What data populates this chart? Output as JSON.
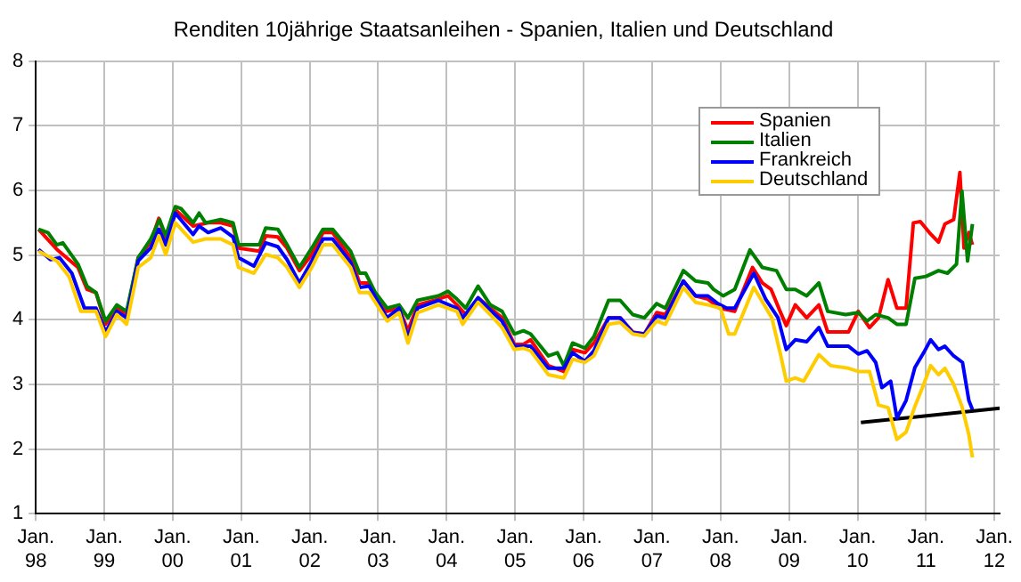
{
  "chart_data": {
    "type": "line",
    "title": "Renditen 10jährige Staatsanleihen - Spanien, Italien und Deutschland",
    "xlim": [
      "1998-01-01",
      "2012-01-29"
    ],
    "xticks": [
      {
        "value": "1998-01-01",
        "label": "Jan. 98"
      },
      {
        "value": "1999-01-01",
        "label": "Jan. 99"
      },
      {
        "value": "2000-01-01",
        "label": "Jan. 00"
      },
      {
        "value": "2001-01-01",
        "label": "Jan. 01"
      },
      {
        "value": "2002-01-01",
        "label": "Jan. 02"
      },
      {
        "value": "2003-01-01",
        "label": "Jan. 03"
      },
      {
        "value": "2004-01-01",
        "label": "Jan. 04"
      },
      {
        "value": "2005-01-01",
        "label": "Jan. 05"
      },
      {
        "value": "2006-01-01",
        "label": "Jan. 06"
      },
      {
        "value": "2007-01-01",
        "label": "Jan. 07"
      },
      {
        "value": "2008-01-01",
        "label": "Jan. 08"
      },
      {
        "value": "2009-01-01",
        "label": "Jan. 09"
      },
      {
        "value": "2010-01-01",
        "label": "Jan. 10"
      },
      {
        "value": "2011-01-01",
        "label": "Jan. 11"
      },
      {
        "value": "2012-01-01",
        "label": "Jan. 12"
      }
    ],
    "ylim": [
      1,
      8
    ],
    "yticks": [
      1,
      2,
      3,
      4,
      5,
      6,
      7,
      8
    ],
    "grid": true,
    "legend": "top right",
    "marker": "none",
    "line_style": "solid",
    "series": [
      {
        "name": "Deutschland",
        "color": "#ffcc00",
        "x": [
          "1998-01-15",
          "1998-04-23",
          "1998-06-27",
          "1998-08-29",
          "1998-11-18",
          "1999-01-08",
          "1999-03-09",
          "1999-04-30",
          "1999-07-01",
          "1999-09-06",
          "1999-10-19",
          "1999-11-25",
          "2000-01-15",
          "2000-04-19",
          "2000-06-24",
          "2000-09-13",
          "2000-11-18",
          "2000-12-17",
          "2001-03-09",
          "2001-05-11",
          "2001-07-15",
          "2001-09-02",
          "2001-11-07",
          "2002-01-12",
          "2002-03-13",
          "2002-05-03",
          "2002-08-07",
          "2002-09-24",
          "2002-11-14",
          "2003-02-18",
          "2003-04-23",
          "2003-06-09",
          "2003-07-30",
          "2003-11-18",
          "2004-02-25",
          "2004-03-27",
          "2004-06-17",
          "2004-08-21",
          "2004-10-23",
          "2004-12-27",
          "2005-02-14",
          "2005-03-24",
          "2005-06-27",
          "2005-09-17",
          "2005-11-03",
          "2006-01-08",
          "2006-02-25",
          "2006-05-14",
          "2006-07-15",
          "2006-09-20",
          "2006-11-21",
          "2007-01-26",
          "2007-03-13",
          "2007-06-17",
          "2007-08-21",
          "2007-10-26",
          "2008-01-01",
          "2008-02-14",
          "2008-03-17",
          "2008-06-27",
          "2008-10-01",
          "2008-11-18",
          "2008-12-17",
          "2009-02-03",
          "2009-03-20",
          "2009-06-09",
          "2009-08-11",
          "2009-11-14",
          "2010-01-05",
          "2010-03-06",
          "2010-04-23",
          "2010-06-13",
          "2010-07-30",
          "2010-09-17",
          "2010-11-03",
          "2010-12-20",
          "2011-01-26",
          "2011-03-09",
          "2011-04-12",
          "2011-05-29",
          "2011-07-12",
          "2011-08-18",
          "2011-09-06"
        ],
        "values": [
          5.06,
          4.91,
          4.67,
          4.13,
          4.13,
          3.74,
          4.08,
          3.93,
          4.81,
          4.96,
          5.3,
          5.01,
          5.5,
          5.2,
          5.25,
          5.25,
          5.16,
          4.81,
          4.72,
          5.01,
          4.96,
          4.81,
          4.5,
          4.81,
          5.16,
          5.16,
          4.81,
          4.42,
          4.42,
          3.98,
          4.11,
          3.64,
          4.11,
          4.23,
          4.13,
          3.93,
          4.27,
          4.08,
          3.88,
          3.54,
          3.56,
          3.52,
          3.15,
          3.1,
          3.39,
          3.34,
          3.44,
          3.93,
          3.96,
          3.78,
          3.75,
          3.98,
          3.93,
          4.5,
          4.27,
          4.23,
          4.18,
          3.78,
          3.78,
          4.5,
          4.03,
          3.44,
          3.05,
          3.1,
          3.05,
          3.46,
          3.29,
          3.25,
          3.2,
          3.2,
          2.68,
          2.64,
          2.15,
          2.26,
          2.66,
          3.0,
          3.29,
          3.15,
          3.25,
          3.0,
          2.66,
          2.22,
          1.87
        ]
      },
      {
        "name": "Frankreich",
        "color": "#0000ff",
        "x": [
          "1998-01-15",
          "1998-03-20",
          "1998-05-07",
          "1998-07-12",
          "1998-09-17",
          "1998-11-18",
          "1999-01-08",
          "1999-03-09",
          "1999-04-30",
          "1999-07-01",
          "1999-09-06",
          "1999-10-19",
          "1999-11-25",
          "2000-01-15",
          "2000-04-19",
          "2000-05-21",
          "2000-07-08",
          "2000-09-13",
          "2000-11-18",
          "2000-12-17",
          "2001-03-09",
          "2001-05-11",
          "2001-07-15",
          "2001-09-02",
          "2001-11-07",
          "2002-01-12",
          "2002-03-13",
          "2002-05-03",
          "2002-08-07",
          "2002-09-24",
          "2002-11-14",
          "2003-02-18",
          "2003-04-23",
          "2003-06-09",
          "2003-07-30",
          "2003-11-18",
          "2004-02-25",
          "2004-03-27",
          "2004-06-17",
          "2004-08-21",
          "2004-10-23",
          "2004-12-27",
          "2005-02-14",
          "2005-03-24",
          "2005-06-27",
          "2005-09-17",
          "2005-11-03",
          "2006-01-08",
          "2006-02-25",
          "2006-05-14",
          "2006-07-15",
          "2006-09-20",
          "2006-11-21",
          "2007-01-26",
          "2007-03-13",
          "2007-06-17",
          "2007-08-21",
          "2007-10-26",
          "2007-12-17",
          "2008-02-03",
          "2008-03-17",
          "2008-06-27",
          "2008-08-29",
          "2008-11-03",
          "2008-12-17",
          "2009-02-03",
          "2009-04-05",
          "2009-06-09",
          "2009-07-26",
          "2009-11-14",
          "2010-01-05",
          "2010-02-21",
          "2010-04-08",
          "2010-05-11",
          "2010-06-27",
          "2010-07-30",
          "2010-09-17",
          "2010-11-03",
          "2010-12-20",
          "2011-01-26",
          "2011-03-09",
          "2011-04-12",
          "2011-05-29",
          "2011-07-15",
          "2011-08-18",
          "2011-09-06"
        ],
        "values": [
          5.09,
          4.93,
          4.96,
          4.72,
          4.18,
          4.18,
          3.81,
          4.13,
          4.03,
          4.91,
          5.11,
          5.4,
          5.16,
          5.65,
          5.32,
          5.45,
          5.35,
          5.42,
          5.28,
          4.96,
          4.83,
          5.19,
          5.13,
          4.93,
          4.57,
          4.91,
          5.25,
          5.25,
          4.89,
          4.5,
          4.52,
          4.03,
          4.18,
          3.72,
          4.18,
          4.3,
          4.18,
          4.03,
          4.34,
          4.15,
          3.98,
          3.59,
          3.59,
          3.59,
          3.25,
          3.25,
          3.49,
          3.36,
          3.52,
          4.03,
          4.03,
          3.8,
          3.78,
          4.06,
          4.03,
          4.6,
          4.37,
          4.37,
          4.25,
          4.18,
          4.18,
          4.72,
          4.32,
          4.03,
          3.54,
          3.69,
          3.66,
          3.88,
          3.59,
          3.59,
          3.47,
          3.52,
          3.34,
          2.95,
          3.05,
          2.48,
          2.75,
          3.26,
          3.49,
          3.69,
          3.54,
          3.59,
          3.44,
          3.34,
          2.75,
          2.61
        ]
      },
      {
        "name": "Italien",
        "color": "#008000",
        "x": [
          "1998-01-15",
          "1998-03-06",
          "1998-04-23",
          "1998-05-25",
          "1998-08-14",
          "1998-10-01",
          "1998-11-18",
          "1999-01-08",
          "1999-03-09",
          "1999-04-30",
          "1999-07-01",
          "1999-09-06",
          "1999-10-23",
          "1999-11-25",
          "2000-01-15",
          "2000-02-14",
          "2000-04-19",
          "2000-05-21",
          "2000-06-24",
          "2000-09-13",
          "2000-11-18",
          "2000-12-17",
          "2001-02-07",
          "2001-04-08",
          "2001-05-11",
          "2001-07-15",
          "2001-09-02",
          "2001-11-07",
          "2002-01-12",
          "2002-03-13",
          "2002-05-03",
          "2002-08-07",
          "2002-09-24",
          "2002-10-26",
          "2002-12-17",
          "2003-02-18",
          "2003-04-23",
          "2003-06-09",
          "2003-07-30",
          "2003-11-18",
          "2004-01-08",
          "2004-02-25",
          "2004-04-12",
          "2004-06-17",
          "2004-08-21",
          "2004-10-23",
          "2004-12-27",
          "2005-02-14",
          "2005-03-24",
          "2005-06-27",
          "2005-08-14",
          "2005-09-17",
          "2005-11-03",
          "2006-01-08",
          "2006-02-25",
          "2006-05-14",
          "2006-07-15",
          "2006-09-20",
          "2006-11-21",
          "2007-01-26",
          "2007-03-13",
          "2007-06-17",
          "2007-08-21",
          "2007-10-26",
          "2007-11-25",
          "2008-01-15",
          "2008-03-17",
          "2008-06-06",
          "2008-08-11",
          "2008-10-26",
          "2008-12-17",
          "2009-02-03",
          "2009-04-05",
          "2009-06-09",
          "2009-07-26",
          "2009-10-30",
          "2010-01-05",
          "2010-02-21",
          "2010-04-08",
          "2010-06-13",
          "2010-07-30",
          "2010-09-17",
          "2010-11-03",
          "2011-01-01",
          "2011-03-09",
          "2011-04-26",
          "2011-06-13",
          "2011-07-12",
          "2011-08-11",
          "2011-09-06"
        ],
        "values": [
          5.4,
          5.35,
          5.16,
          5.19,
          4.86,
          4.52,
          4.42,
          3.98,
          4.23,
          4.13,
          4.96,
          5.25,
          5.55,
          5.3,
          5.75,
          5.72,
          5.5,
          5.65,
          5.5,
          5.55,
          5.5,
          5.16,
          5.16,
          5.16,
          5.42,
          5.4,
          5.16,
          4.81,
          5.11,
          5.4,
          5.4,
          5.06,
          4.72,
          4.72,
          4.42,
          4.18,
          4.23,
          4.03,
          4.3,
          4.37,
          4.44,
          4.32,
          4.18,
          4.52,
          4.23,
          4.13,
          3.78,
          3.83,
          3.78,
          3.44,
          3.49,
          3.29,
          3.64,
          3.56,
          3.74,
          4.3,
          4.3,
          4.08,
          4.03,
          4.25,
          4.18,
          4.76,
          4.6,
          4.57,
          4.47,
          4.37,
          4.47,
          5.08,
          4.81,
          4.76,
          4.47,
          4.47,
          4.37,
          4.57,
          4.13,
          4.08,
          4.11,
          3.98,
          4.08,
          4.03,
          3.93,
          3.93,
          4.64,
          4.67,
          4.76,
          4.72,
          4.86,
          5.99,
          4.91,
          5.48
        ]
      },
      {
        "name": "Spanien",
        "color": "#ff0000",
        "x": [
          "1998-01-15",
          "1998-04-23",
          "1998-08-14",
          "1998-10-01",
          "1998-11-18",
          "1999-01-08",
          "1999-03-09",
          "1999-04-30",
          "1999-07-01",
          "1999-09-06",
          "1999-10-19",
          "1999-11-25",
          "2000-01-15",
          "2000-04-19",
          "2000-07-08",
          "2000-09-13",
          "2000-11-18",
          "2000-12-17",
          "2001-04-08",
          "2001-05-11",
          "2001-07-15",
          "2001-09-02",
          "2001-11-07",
          "2002-01-12",
          "2002-03-13",
          "2002-05-03",
          "2002-08-07",
          "2002-09-24",
          "2002-11-14",
          "2002-12-17",
          "2003-02-18",
          "2003-04-23",
          "2003-06-09",
          "2003-07-30",
          "2003-11-18",
          "2004-01-08",
          "2004-02-25",
          "2004-04-12",
          "2004-06-17",
          "2004-08-21",
          "2004-10-23",
          "2004-12-27",
          "2005-02-14",
          "2005-03-24",
          "2005-06-27",
          "2005-09-17",
          "2005-11-03",
          "2006-01-08",
          "2006-02-25",
          "2006-05-14",
          "2006-07-15",
          "2006-09-20",
          "2006-11-21",
          "2007-01-26",
          "2007-03-13",
          "2007-06-17",
          "2007-08-21",
          "2007-10-26",
          "2007-12-27",
          "2008-03-17",
          "2008-06-20",
          "2008-08-11",
          "2008-09-27",
          "2008-11-14",
          "2008-12-17",
          "2009-02-03",
          "2009-04-05",
          "2009-06-09",
          "2009-07-26",
          "2009-11-14",
          "2010-01-05",
          "2010-03-06",
          "2010-04-23",
          "2010-06-13",
          "2010-07-30",
          "2010-09-17",
          "2010-10-26",
          "2010-12-02",
          "2011-01-19",
          "2011-03-09",
          "2011-04-12",
          "2011-05-29",
          "2011-07-01",
          "2011-07-23",
          "2011-08-18",
          "2011-09-06"
        ],
        "values": [
          5.4,
          5.09,
          4.81,
          4.47,
          4.42,
          3.93,
          4.18,
          4.08,
          4.96,
          5.2,
          5.57,
          5.25,
          5.7,
          5.45,
          5.5,
          5.5,
          5.45,
          5.11,
          5.06,
          5.3,
          5.28,
          5.11,
          4.76,
          5.01,
          5.35,
          5.35,
          4.96,
          4.57,
          4.57,
          4.32,
          4.13,
          4.18,
          3.83,
          4.23,
          4.32,
          4.37,
          4.23,
          4.08,
          4.34,
          4.18,
          4.03,
          3.62,
          3.62,
          3.69,
          3.29,
          3.2,
          3.54,
          3.49,
          3.64,
          4.03,
          4.03,
          3.81,
          3.78,
          4.11,
          4.08,
          4.6,
          4.37,
          4.32,
          4.18,
          4.13,
          4.81,
          4.57,
          4.47,
          4.13,
          3.91,
          4.23,
          4.03,
          4.23,
          3.81,
          3.81,
          4.13,
          3.88,
          4.03,
          4.62,
          4.18,
          4.18,
          5.5,
          5.52,
          5.35,
          5.2,
          5.48,
          5.55,
          6.28,
          5.11,
          5.35,
          5.16
        ]
      },
      {
        "type": "line",
        "color": "#000000",
        "x": [
          "2010-01-19",
          "2012-01-29"
        ],
        "values": [
          2.41,
          2.63
        ]
      }
    ]
  }
}
